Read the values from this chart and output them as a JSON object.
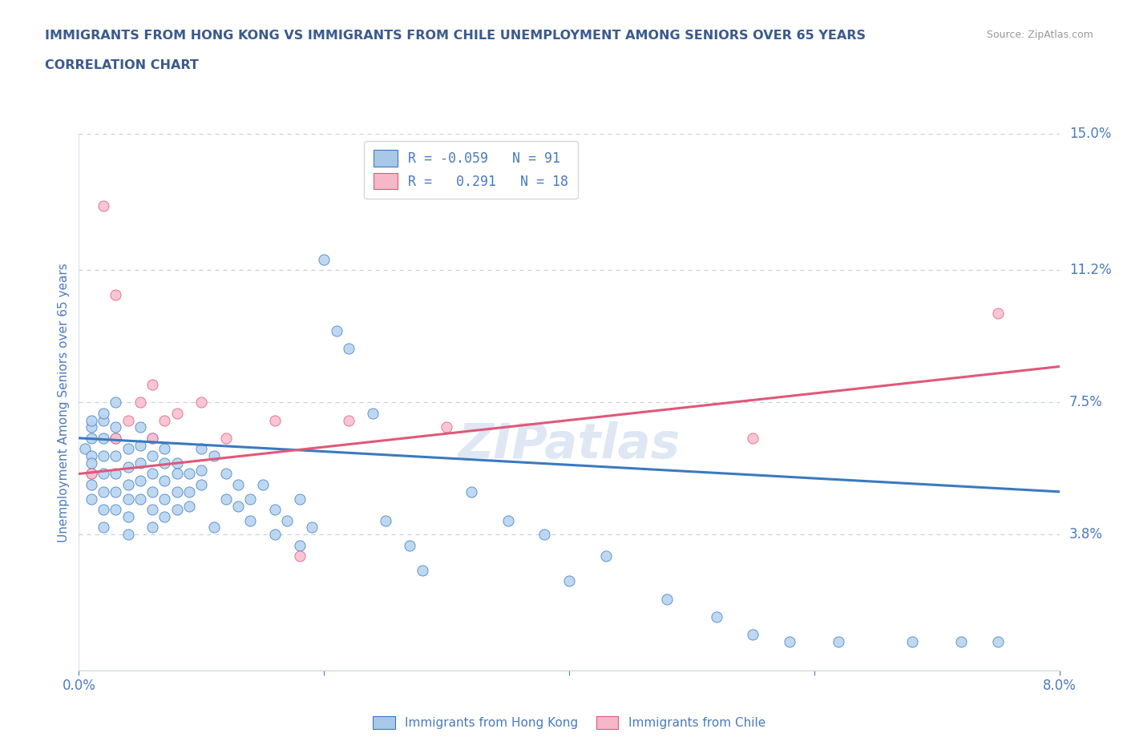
{
  "title_line1": "IMMIGRANTS FROM HONG KONG VS IMMIGRANTS FROM CHILE UNEMPLOYMENT AMONG SENIORS OVER 65 YEARS",
  "title_line2": "CORRELATION CHART",
  "source": "Source: ZipAtlas.com",
  "ylabel": "Unemployment Among Seniors over 65 years",
  "xlim": [
    0,
    0.08
  ],
  "ylim": [
    0,
    0.15
  ],
  "ytick_labels_right": [
    "3.8%",
    "7.5%",
    "11.2%",
    "15.0%"
  ],
  "ytick_vals_right": [
    0.038,
    0.075,
    0.112,
    0.15
  ],
  "legend_hk_label": "R = -0.059   N = 91",
  "legend_chile_label": "R =   0.291   N = 18",
  "legend_hk_color": "#a8c8e8",
  "legend_chile_color": "#f5b8c8",
  "hk_trend_color": "#3a7abf",
  "chile_trend_color": "#e05878",
  "scatter_hk_color": "#b8d4f0",
  "scatter_chile_color": "#f8c0d0",
  "title_color": "#3a5a8c",
  "axis_color": "#4a7abf",
  "grid_color": "#c8d0dc",
  "background_color": "#ffffff",
  "watermark": "ZIPatlas",
  "hk_trend_x0": 0.0,
  "hk_trend_y0": 0.065,
  "hk_trend_x1": 0.08,
  "hk_trend_y1": 0.05,
  "chile_trend_x0": 0.0,
  "chile_trend_y0": 0.055,
  "chile_trend_x1": 0.08,
  "chile_trend_y1": 0.085,
  "hk_x": [
    0.0005,
    0.001,
    0.001,
    0.001,
    0.001,
    0.001,
    0.001,
    0.001,
    0.001,
    0.002,
    0.002,
    0.002,
    0.002,
    0.002,
    0.002,
    0.002,
    0.002,
    0.003,
    0.003,
    0.003,
    0.003,
    0.003,
    0.003,
    0.003,
    0.004,
    0.004,
    0.004,
    0.004,
    0.004,
    0.004,
    0.005,
    0.005,
    0.005,
    0.005,
    0.005,
    0.006,
    0.006,
    0.006,
    0.006,
    0.006,
    0.006,
    0.007,
    0.007,
    0.007,
    0.007,
    0.007,
    0.008,
    0.008,
    0.008,
    0.008,
    0.009,
    0.009,
    0.009,
    0.01,
    0.01,
    0.01,
    0.011,
    0.011,
    0.012,
    0.012,
    0.013,
    0.013,
    0.014,
    0.014,
    0.015,
    0.016,
    0.016,
    0.017,
    0.018,
    0.018,
    0.019,
    0.02,
    0.021,
    0.022,
    0.024,
    0.025,
    0.027,
    0.028,
    0.032,
    0.035,
    0.038,
    0.04,
    0.043,
    0.048,
    0.052,
    0.055,
    0.058,
    0.062,
    0.068,
    0.072,
    0.075
  ],
  "hk_y": [
    0.062,
    0.065,
    0.068,
    0.06,
    0.055,
    0.058,
    0.07,
    0.052,
    0.048,
    0.065,
    0.07,
    0.06,
    0.055,
    0.05,
    0.045,
    0.04,
    0.072,
    0.065,
    0.06,
    0.055,
    0.05,
    0.045,
    0.068,
    0.075,
    0.062,
    0.057,
    0.052,
    0.048,
    0.043,
    0.038,
    0.068,
    0.063,
    0.058,
    0.053,
    0.048,
    0.065,
    0.06,
    0.055,
    0.05,
    0.045,
    0.04,
    0.062,
    0.058,
    0.053,
    0.048,
    0.043,
    0.058,
    0.055,
    0.05,
    0.045,
    0.055,
    0.05,
    0.046,
    0.062,
    0.056,
    0.052,
    0.06,
    0.04,
    0.055,
    0.048,
    0.052,
    0.046,
    0.048,
    0.042,
    0.052,
    0.045,
    0.038,
    0.042,
    0.048,
    0.035,
    0.04,
    0.115,
    0.095,
    0.09,
    0.072,
    0.042,
    0.035,
    0.028,
    0.05,
    0.042,
    0.038,
    0.025,
    0.032,
    0.02,
    0.015,
    0.01,
    0.008,
    0.008,
    0.008,
    0.008,
    0.008
  ],
  "chile_x": [
    0.001,
    0.002,
    0.003,
    0.003,
    0.004,
    0.005,
    0.006,
    0.006,
    0.007,
    0.008,
    0.01,
    0.012,
    0.016,
    0.018,
    0.022,
    0.03,
    0.055,
    0.075
  ],
  "chile_y": [
    0.055,
    0.13,
    0.105,
    0.065,
    0.07,
    0.075,
    0.065,
    0.08,
    0.07,
    0.072,
    0.075,
    0.065,
    0.07,
    0.032,
    0.07,
    0.068,
    0.065,
    0.1
  ]
}
